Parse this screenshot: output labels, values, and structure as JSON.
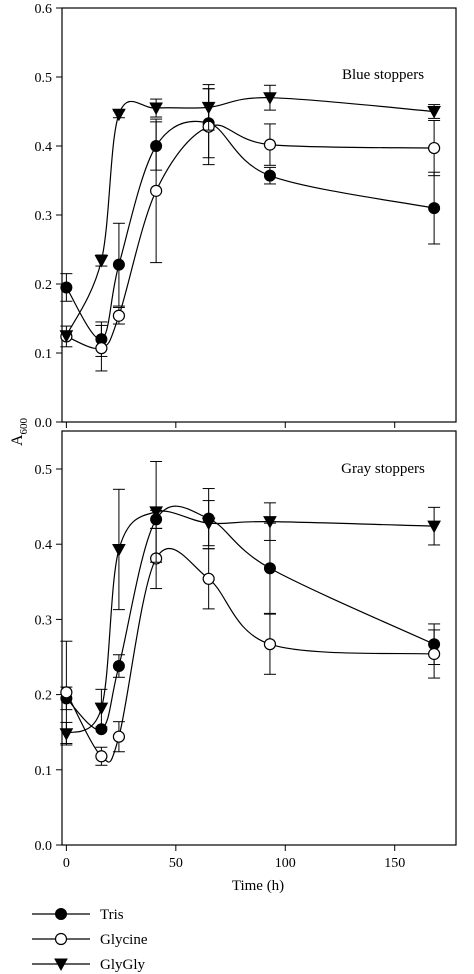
{
  "shared": {
    "ylabel_main": "A",
    "ylabel_sub": "600",
    "xlabel": "Time (h)",
    "x_ticks": [
      0,
      50,
      100,
      150
    ],
    "xlim": [
      -2,
      178
    ]
  },
  "legend": [
    {
      "name": "Tris",
      "marker": "filled-circle"
    },
    {
      "name": "Glycine",
      "marker": "open-circle"
    },
    {
      "name": "GlyGly",
      "marker": "filled-triangle-down"
    }
  ],
  "chart_data": [
    {
      "type": "line",
      "title": "Blue stoppers",
      "ylim": [
        0,
        0.6
      ],
      "y_ticks": [
        "0.0",
        "0.1",
        "0.2",
        "0.3",
        "0.4",
        "0.5",
        "0.6"
      ],
      "x": [
        0,
        16,
        24,
        41,
        65,
        93,
        168
      ],
      "series": [
        {
          "name": "Tris",
          "values": [
            0.195,
            0.12,
            0.228,
            0.4,
            0.433,
            0.357,
            0.31
          ],
          "errors": [
            0.02,
            0.025,
            0.06,
            0.035,
            0.05,
            0.012,
            0.052
          ]
        },
        {
          "name": "Glycine",
          "values": [
            0.124,
            0.107,
            0.154,
            0.335,
            0.428,
            0.402,
            0.397
          ],
          "errors": [
            0.015,
            0.033,
            0.012,
            0.104,
            0.055,
            0.03,
            0.04
          ]
        },
        {
          "name": "GlyGly",
          "values": [
            0.125,
            0.234,
            0.446,
            0.455,
            0.456,
            0.47,
            0.45
          ],
          "errors": [
            0.0,
            0.008,
            0.005,
            0.013,
            0.033,
            0.018,
            0.01
          ]
        }
      ]
    },
    {
      "type": "line",
      "title": "Gray stoppers",
      "ylim": [
        0,
        0.55
      ],
      "y_ticks": [
        "0.0",
        "0.1",
        "0.2",
        "0.3",
        "0.4",
        "0.5"
      ],
      "x": [
        0,
        16,
        24,
        41,
        65,
        93,
        168
      ],
      "series": [
        {
          "name": "Tris",
          "values": [
            0.195,
            0.154,
            0.238,
            0.433,
            0.434,
            0.368,
            0.267
          ],
          "errors": [
            0.015,
            0.0,
            0.015,
            0.012,
            0.04,
            0.06,
            0.027
          ]
        },
        {
          "name": "Glycine",
          "values": [
            0.203,
            0.118,
            0.144,
            0.381,
            0.354,
            0.267,
            0.254
          ],
          "errors": [
            0.068,
            0.012,
            0.02,
            0.04,
            0.04,
            0.04,
            0.032
          ]
        },
        {
          "name": "GlyGly",
          "values": [
            0.148,
            0.182,
            0.393,
            0.443,
            0.428,
            0.43,
            0.424
          ],
          "errors": [
            0.015,
            0.025,
            0.08,
            0.067,
            0.03,
            0.025,
            0.025
          ]
        }
      ]
    }
  ]
}
